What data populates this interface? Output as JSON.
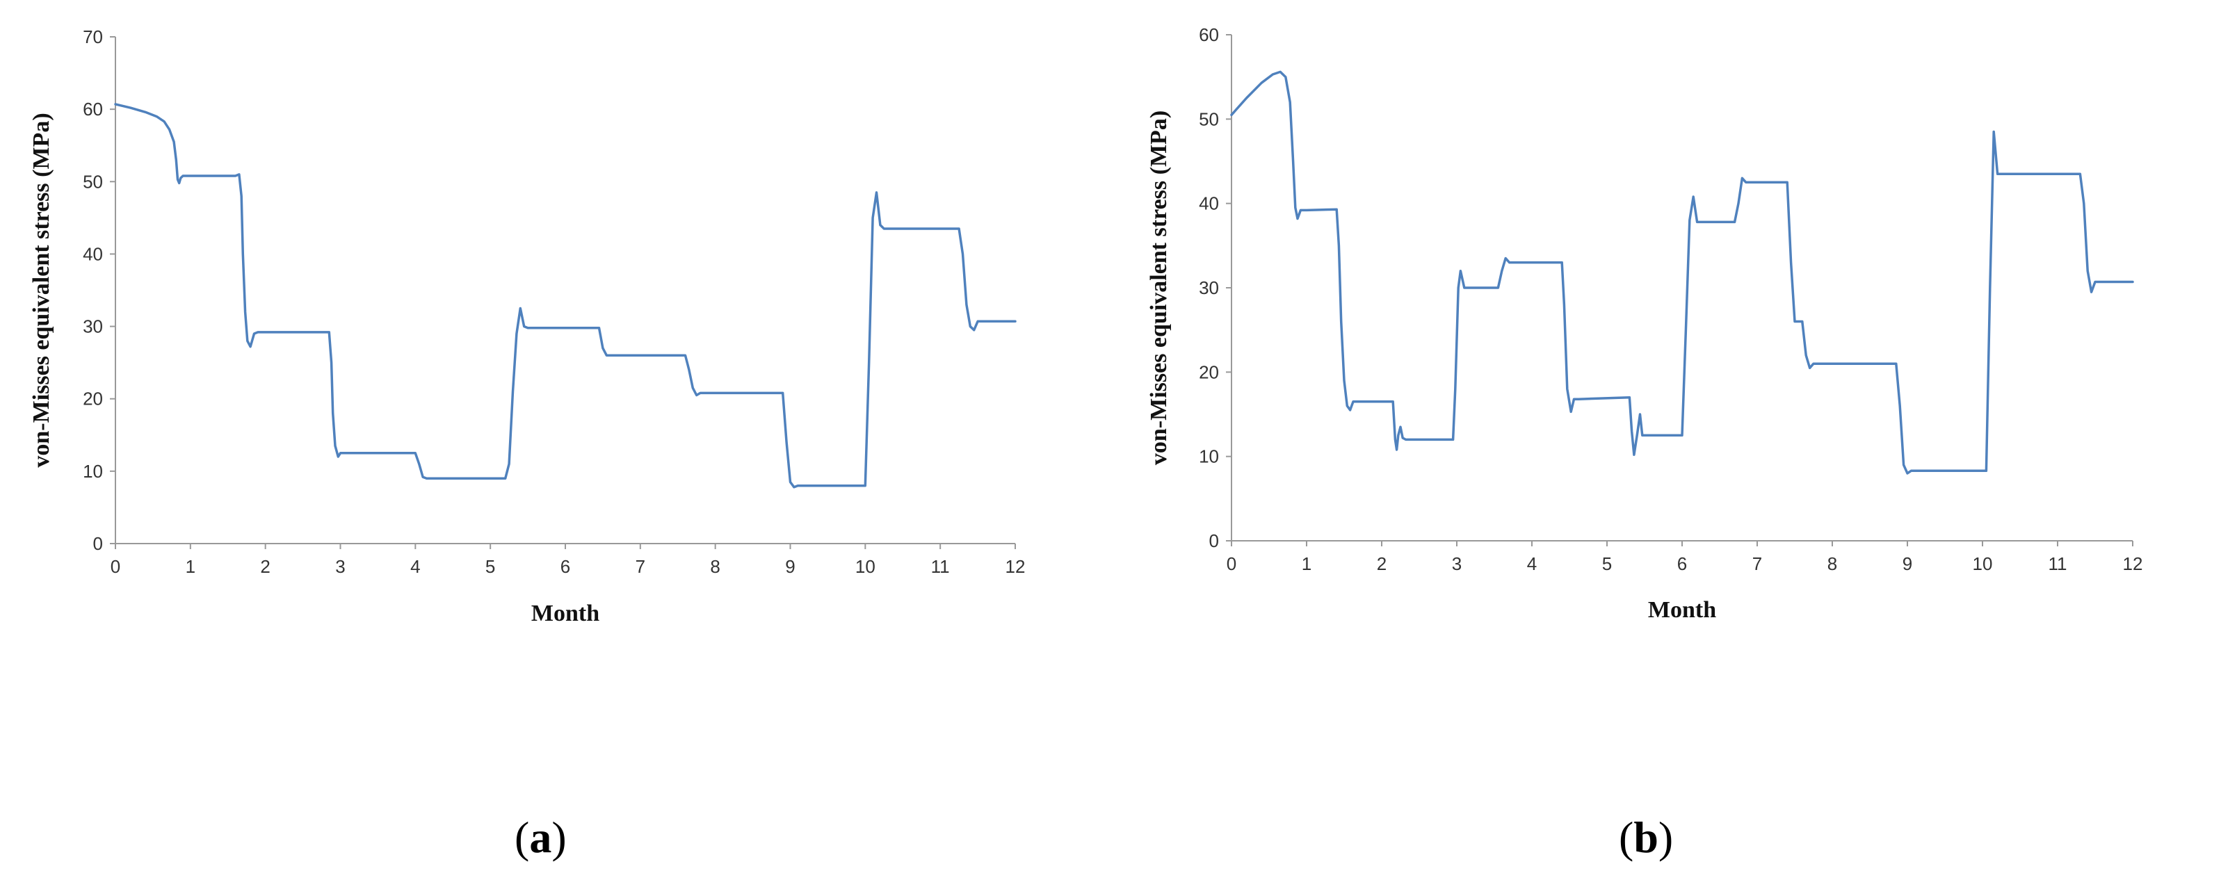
{
  "chart_data": [
    {
      "panel": "(a)",
      "type": "line",
      "xlabel": "Month",
      "ylabel": "von-Misses equivalent stress (MPa)",
      "xlim": [
        0,
        12
      ],
      "ylim": [
        0,
        70
      ],
      "xticks": [
        0,
        1,
        2,
        3,
        4,
        5,
        6,
        7,
        8,
        9,
        10,
        11,
        12
      ],
      "yticks": [
        0,
        10,
        20,
        30,
        40,
        50,
        60,
        70
      ],
      "grid": false,
      "color": "#4f81bd",
      "series": [
        {
          "x": [
            0,
            0.2,
            0.4,
            0.55,
            0.65,
            0.72,
            0.78,
            0.81,
            0.83,
            0.85,
            0.87,
            0.9,
            0.95,
            1.0,
            1.6,
            1.65,
            1.68,
            1.7,
            1.73,
            1.76,
            1.8,
            1.85,
            1.9,
            2.0,
            2.85,
            2.88,
            2.9,
            2.93,
            2.97,
            3.0,
            3.05,
            4.0,
            4.05,
            4.1,
            4.15,
            5.2,
            5.25,
            5.3,
            5.35,
            5.4,
            5.45,
            5.5,
            6.45,
            6.5,
            6.55,
            6.6,
            7.6,
            7.65,
            7.7,
            7.75,
            7.8,
            8.9,
            8.95,
            9.0,
            9.05,
            9.1,
            9.15,
            10.0,
            10.05,
            10.1,
            10.15,
            10.2,
            10.25,
            10.3,
            11.25,
            11.3,
            11.35,
            11.4,
            11.45,
            11.5,
            12.0
          ],
          "y": [
            60.7,
            60.2,
            59.6,
            59.0,
            58.3,
            57.2,
            55.5,
            53.0,
            50.3,
            49.8,
            50.5,
            50.8,
            50.8,
            50.8,
            50.8,
            51.0,
            48.0,
            40.0,
            32.0,
            28.0,
            27.2,
            29.0,
            29.2,
            29.2,
            29.2,
            25.0,
            18.0,
            13.5,
            12.0,
            12.5,
            12.5,
            12.5,
            11.0,
            9.2,
            9.0,
            9.0,
            11.0,
            21.0,
            29.0,
            32.5,
            30.0,
            29.8,
            29.8,
            27.0,
            26.0,
            26.0,
            26.0,
            24.0,
            21.5,
            20.5,
            20.8,
            20.8,
            14.0,
            8.5,
            7.8,
            8.0,
            8.0,
            8.0,
            25.0,
            45.0,
            48.5,
            44.0,
            43.5,
            43.5,
            43.5,
            40.0,
            33.0,
            30.0,
            29.5,
            30.7,
            30.7
          ]
        }
      ]
    },
    {
      "panel": "(b)",
      "type": "line",
      "xlabel": "Month",
      "ylabel": "von-Misses equivalent stress (MPa)",
      "xlim": [
        0,
        12
      ],
      "ylim": [
        0,
        60
      ],
      "xticks": [
        0,
        1,
        2,
        3,
        4,
        5,
        6,
        7,
        8,
        9,
        10,
        11,
        12
      ],
      "yticks": [
        0,
        10,
        20,
        30,
        40,
        50,
        60
      ],
      "grid": false,
      "color": "#4f81bd",
      "series": [
        {
          "x": [
            0,
            0.2,
            0.4,
            0.55,
            0.65,
            0.72,
            0.78,
            0.82,
            0.85,
            0.88,
            0.92,
            0.96,
            1.0,
            1.4,
            1.43,
            1.46,
            1.5,
            1.54,
            1.58,
            1.62,
            1.7,
            2.15,
            2.18,
            2.2,
            2.22,
            2.25,
            2.28,
            2.32,
            2.4,
            2.95,
            2.98,
            3.02,
            3.05,
            3.1,
            3.2,
            3.55,
            3.6,
            3.65,
            3.7,
            4.4,
            4.43,
            4.47,
            4.52,
            4.56,
            4.62,
            5.3,
            5.33,
            5.36,
            5.4,
            5.44,
            5.47,
            5.52,
            6.0,
            6.05,
            6.1,
            6.15,
            6.2,
            6.25,
            6.7,
            6.75,
            6.8,
            6.85,
            6.9,
            7.4,
            7.45,
            7.5,
            7.55,
            7.6,
            7.65,
            7.7,
            7.75,
            7.8,
            8.85,
            8.9,
            8.95,
            9.0,
            9.05,
            9.1,
            10.05,
            10.1,
            10.15,
            10.2,
            10.25,
            11.3,
            11.35,
            11.4,
            11.45,
            11.5,
            12.0
          ],
          "y": [
            50.5,
            52.5,
            54.3,
            55.3,
            55.6,
            55.0,
            52.0,
            45.0,
            39.5,
            38.2,
            39.2,
            39.2,
            39.2,
            39.3,
            35.0,
            26.0,
            19.0,
            16.0,
            15.5,
            16.5,
            16.5,
            16.5,
            12.0,
            10.8,
            12.5,
            13.5,
            12.2,
            12.0,
            12.0,
            12.0,
            18.0,
            30.0,
            32.0,
            30.0,
            30.0,
            30.0,
            32.0,
            33.5,
            33.0,
            33.0,
            28.0,
            18.0,
            15.3,
            16.8,
            16.8,
            17.0,
            13.0,
            10.2,
            12.5,
            15.0,
            12.5,
            12.5,
            12.5,
            25.0,
            38.0,
            40.8,
            37.8,
            37.8,
            37.8,
            40.0,
            43.0,
            42.5,
            42.5,
            42.5,
            33.0,
            26.0,
            26.0,
            26.0,
            22.0,
            20.5,
            21.0,
            21.0,
            21.0,
            16.0,
            9.0,
            8.0,
            8.3,
            8.3,
            8.3,
            30.0,
            48.5,
            43.5,
            43.5,
            43.5,
            40.0,
            32.0,
            29.5,
            30.7,
            30.7
          ]
        }
      ]
    }
  ]
}
